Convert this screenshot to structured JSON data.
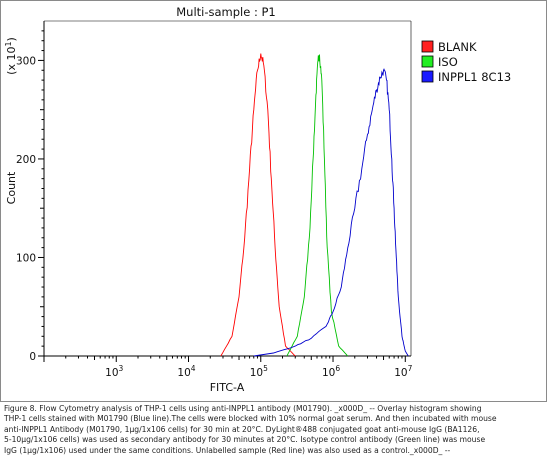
{
  "chart_data": {
    "type": "line",
    "title": "Multi-sample : P1",
    "xlabel": "FITC-A",
    "ylabel": "Count",
    "y_multiplier": "(x 10",
    "y_multiplier_exp": "1",
    "y_multiplier_close": ")",
    "xscale": "log",
    "xlim": [
      100,
      12000000
    ],
    "ylim": [
      0,
      340
    ],
    "x_ticks": [
      {
        "base": "10",
        "exp": "3"
      },
      {
        "base": "10",
        "exp": "4"
      },
      {
        "base": "10",
        "exp": "5"
      },
      {
        "base": "10",
        "exp": "6"
      },
      {
        "base": "10",
        "exp": "7"
      }
    ],
    "y_ticks": [
      "0",
      "100",
      "200",
      "300"
    ],
    "legend_position": "right",
    "series": [
      {
        "name": "BLANK",
        "color": "#ff0000",
        "legend_swatch": "#ff2020",
        "x": [
          28000,
          40000,
          50000,
          60000,
          70000,
          80000,
          90000,
          100000,
          110000,
          125000,
          140000,
          158000,
          180000,
          220000,
          300000
        ],
        "y": [
          0,
          20,
          60,
          120,
          190,
          250,
          290,
          307,
          295,
          250,
          180,
          110,
          50,
          10,
          0
        ]
      },
      {
        "name": "ISO",
        "color": "#00c000",
        "legend_swatch": "#22ee22",
        "x": [
          230000,
          320000,
          400000,
          470000,
          530000,
          580000,
          620000,
          650000,
          700000,
          760000,
          830000,
          950000,
          1200000,
          1600000
        ],
        "y": [
          0,
          20,
          60,
          120,
          200,
          265,
          300,
          306,
          280,
          200,
          110,
          45,
          10,
          0
        ]
      },
      {
        "name": "INPPL1 8C13",
        "color": "#0000cc",
        "legend_swatch": "#1a1aff",
        "x": [
          80000,
          150000,
          300000,
          500000,
          800000,
          1000000,
          1300000,
          1600000,
          2000000,
          2500000,
          3000000,
          3500000,
          4000000,
          4500000,
          5000000,
          5500000,
          6000000,
          6500000,
          7000000,
          7500000,
          8000000,
          9000000,
          10000000,
          11000000
        ],
        "y": [
          0,
          3,
          10,
          18,
          30,
          45,
          70,
          110,
          150,
          190,
          225,
          250,
          270,
          283,
          290,
          280,
          250,
          200,
          150,
          100,
          60,
          20,
          5,
          0
        ]
      }
    ]
  },
  "caption": "Figure 8. Flow Cytometry analysis of THP-1 cells using anti-INPPL1 antibody (M01790). _x000D_ -- Overlay histogram showing\nTHP-1 cells stained with M01790 (Blue line).The cells were blocked with 10% normal goat serum. And then incubated with mouse\nanti-INPPL1 Antibody (M01790, 1µg/1x106 cells) for 30 min at 20°C. DyLight®488 conjugated goat anti-mouse IgG (BA1126,\n5-10µg/1x106 cells) was used as secondary antibody for 30 minutes at 20°C. Isotype control antibody (Green line) was mouse\nIgG (1µg/1x106) used under the same conditions. Unlabelled sample (Red line) was also used as a control._x000D_ --"
}
